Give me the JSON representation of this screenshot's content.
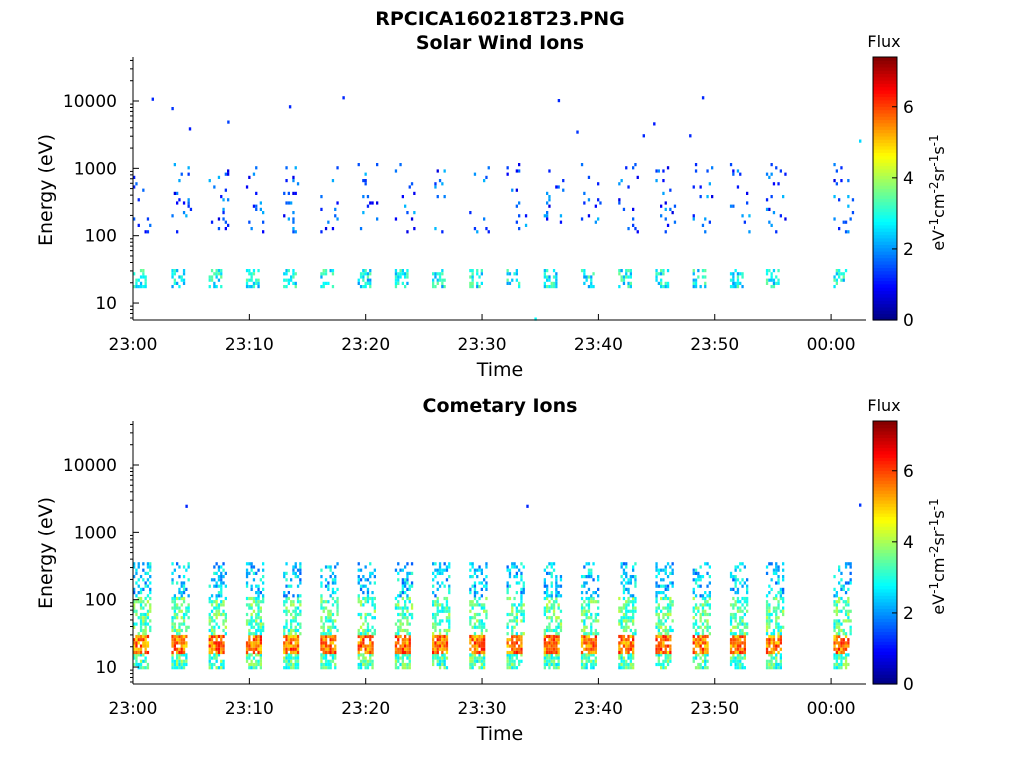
{
  "figure": {
    "title": "RPCICA160218T23.PNG"
  },
  "chart_data": [
    {
      "type": "heatmap",
      "title": "Solar Wind Ions",
      "xlabel": "Time",
      "ylabel": "Energy (eV)",
      "x_ticks": [
        "23:00",
        "23:10",
        "23:20",
        "23:30",
        "23:40",
        "23:50",
        "00:00"
      ],
      "x_tick_minutes": [
        0,
        10,
        20,
        30,
        40,
        50,
        60
      ],
      "xlim_minutes": [
        0,
        63
      ],
      "y_scale": "log",
      "y_ticks": [
        "10",
        "100",
        "1000",
        "10000"
      ],
      "y_tick_values": [
        10,
        100,
        1000,
        10000
      ],
      "ylim": [
        5.6,
        45000
      ],
      "colorbar": {
        "label": "Flux",
        "unit_label": "eV-1cm-2sr-1s-1",
        "ticks": [
          "0",
          "2",
          "4",
          "6"
        ],
        "tick_values": [
          0,
          2,
          4,
          6
        ],
        "range": [
          0,
          7.4
        ],
        "colormap": "jet"
      },
      "scan_start_minutes": [
        0,
        3.3,
        6.5,
        9.7,
        12.9,
        16.1,
        19.3,
        22.5,
        25.7,
        28.9,
        32.1,
        35.3,
        38.5,
        41.7,
        44.9,
        48.1,
        51.3,
        54.4,
        60.2
      ],
      "bands": [
        {
          "emin": 17,
          "emax": 32,
          "flux": 2.8,
          "cover": 0.55,
          "width_minutes": 1.1
        },
        {
          "emin": 120,
          "emax": 1200,
          "flux": 1.5,
          "cover": 0.07,
          "width_minutes": 1.6
        }
      ],
      "isolated_points_minutes_energy_flux": [
        [
          1.6,
          10500,
          1.2
        ],
        [
          3.3,
          7600,
          1.3
        ],
        [
          4.8,
          3800,
          1.1
        ],
        [
          8.1,
          4800,
          1.4
        ],
        [
          13.4,
          8100,
          1.2
        ],
        [
          18.0,
          11000,
          1.2
        ],
        [
          36.5,
          10000,
          1.2
        ],
        [
          38.1,
          3400,
          1.3
        ],
        [
          43.8,
          3000,
          1.2
        ],
        [
          44.7,
          4500,
          1.1
        ],
        [
          47.8,
          3000,
          1.2
        ],
        [
          48.9,
          11000,
          1.2
        ],
        [
          34.5,
          5.7,
          2.8
        ],
        [
          62.4,
          2500,
          2.5
        ]
      ]
    },
    {
      "type": "heatmap",
      "title": "Cometary Ions",
      "xlabel": "Time",
      "ylabel": "Energy (eV)",
      "x_ticks": [
        "23:00",
        "23:10",
        "23:20",
        "23:30",
        "23:40",
        "23:50",
        "00:00"
      ],
      "x_tick_minutes": [
        0,
        10,
        20,
        30,
        40,
        50,
        60
      ],
      "xlim_minutes": [
        0,
        63
      ],
      "y_scale": "log",
      "y_ticks": [
        "10",
        "100",
        "1000",
        "10000"
      ],
      "y_tick_values": [
        10,
        100,
        1000,
        10000
      ],
      "ylim": [
        5.6,
        45000
      ],
      "colorbar": {
        "label": "Flux",
        "unit_label": "eV-1cm-2sr-1s-1",
        "ticks": [
          "0",
          "2",
          "4",
          "6"
        ],
        "tick_values": [
          0,
          2,
          4,
          6
        ],
        "range": [
          0,
          7.4
        ],
        "colormap": "jet"
      },
      "scan_start_minutes": [
        0,
        3.3,
        6.5,
        9.7,
        12.9,
        16.1,
        19.3,
        22.5,
        25.7,
        28.9,
        32.1,
        35.3,
        38.5,
        41.7,
        44.9,
        48.1,
        51.3,
        54.4,
        60.2
      ],
      "bands": [
        {
          "emin": 10,
          "emax": 16,
          "flux": 3.3,
          "cover": 0.75,
          "width_minutes": 1.3
        },
        {
          "emin": 16,
          "emax": 30,
          "flux": 5.6,
          "cover": 0.85,
          "width_minutes": 1.3
        },
        {
          "emin": 30,
          "emax": 110,
          "flux": 3.4,
          "cover": 0.55,
          "width_minutes": 1.4
        },
        {
          "emin": 110,
          "emax": 360,
          "flux": 2.4,
          "cover": 0.35,
          "width_minutes": 1.5
        }
      ],
      "isolated_points_minutes_energy_flux": [
        [
          4.5,
          2400,
          1.2
        ],
        [
          33.8,
          2400,
          1.2
        ],
        [
          62.4,
          2500,
          1.3
        ]
      ]
    }
  ]
}
